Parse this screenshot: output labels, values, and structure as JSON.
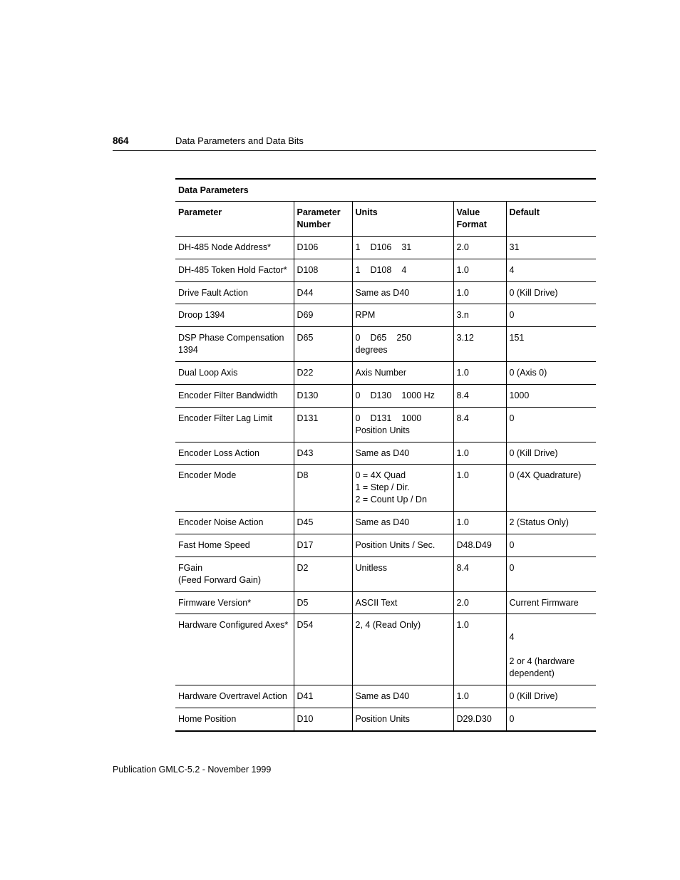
{
  "page_number": "864",
  "chapter_title": "Data Parameters and Data Bits",
  "table_title": "Data Parameters",
  "footer_text": "Publication GMLC-5.2 - November 1999",
  "columns": {
    "parameter": "Parameter",
    "number": "Parameter Number",
    "units": "Units",
    "value_format": "Value Format",
    "default": "Default"
  },
  "rows": [
    {
      "parameter": "DH-485 Node Address*",
      "number": "D106",
      "units_kind": "range",
      "u_lo": "1",
      "u_mid": "D106",
      "u_hi": "31",
      "value_format": "2.0",
      "default": "31"
    },
    {
      "parameter": "DH-485 Token Hold Factor*",
      "number": "D108",
      "units_kind": "range",
      "u_lo": "1",
      "u_mid": "D108",
      "u_hi": "4",
      "value_format": "1.0",
      "default": "4"
    },
    {
      "parameter": "Drive Fault Action",
      "number": "D44",
      "units_kind": "text",
      "units": "Same as D40",
      "value_format": "1.0",
      "default": "0 (Kill Drive)"
    },
    {
      "parameter": "Droop 1394",
      "number": "D69",
      "units_kind": "text",
      "units": "RPM",
      "value_format": "3.n",
      "default": "0"
    },
    {
      "parameter": "DSP Phase Compensation 1394",
      "number": "D65",
      "units_kind": "range_suffix",
      "u_lo": "0",
      "u_mid": "D65",
      "u_hi": "250",
      "u_suffix": "degrees",
      "value_format": "3.12",
      "default": "151"
    },
    {
      "parameter": "Dual Loop Axis",
      "number": "D22",
      "units_kind": "text",
      "units": "Axis Number",
      "value_format": "1.0",
      "default": "0 (Axis 0)"
    },
    {
      "parameter": "Encoder Filter Bandwidth",
      "number": "D130",
      "units_kind": "range",
      "u_lo": "0",
      "u_mid": "D130",
      "u_hi": "1000 Hz",
      "value_format": "8.4",
      "default": "1000"
    },
    {
      "parameter": "Encoder Filter Lag Limit",
      "number": "D131",
      "units_kind": "range_suffix",
      "u_lo": "0",
      "u_mid": "D131",
      "u_hi": "1000",
      "u_suffix": "Position Units",
      "value_format": "8.4",
      "default": "0"
    },
    {
      "parameter": "Encoder Loss Action",
      "number": "D43",
      "units_kind": "text",
      "units": "Same as D40",
      "value_format": "1.0",
      "default": "0 (Kill Drive)"
    },
    {
      "parameter": "Encoder Mode",
      "number": "D8",
      "units_kind": "text",
      "units": "0 = 4X Quad\n1 = Step / Dir.\n2 = Count Up / Dn",
      "value_format": "1.0",
      "default": "0 (4X Quadrature)"
    },
    {
      "parameter": "Encoder Noise Action",
      "number": "D45",
      "units_kind": "text",
      "units": "Same as D40",
      "value_format": "1.0",
      "default": "2 (Status Only)"
    },
    {
      "parameter": "Fast Home Speed",
      "number": "D17",
      "units_kind": "text",
      "units": "Position Units / Sec.",
      "value_format": "D48.D49",
      "default": "0"
    },
    {
      "parameter": "FGain\n(Feed Forward Gain)",
      "number": "D2",
      "units_kind": "text",
      "units": "Unitless",
      "value_format": "8.4",
      "default": "0"
    },
    {
      "parameter": "Firmware Version*",
      "number": "D5",
      "units_kind": "text",
      "units": "ASCII Text",
      "value_format": "2.0",
      "default": "Current Firmware"
    },
    {
      "parameter": "Hardware Configured Axes*",
      "number": "D54",
      "units_kind": "text",
      "units": "2, 4 (Read Only)",
      "value_format": "1.0",
      "default": "\n4\n\n2 or 4 (hardware dependent)"
    },
    {
      "parameter": "Hardware Overtravel Action",
      "number": "D41",
      "units_kind": "text",
      "units": "Same as D40",
      "value_format": "1.0",
      "default": "0 (Kill Drive)"
    },
    {
      "parameter": "Home Position",
      "number": "D10",
      "units_kind": "text",
      "units": "Position Units",
      "value_format": "D29.D30",
      "default": "0"
    }
  ]
}
